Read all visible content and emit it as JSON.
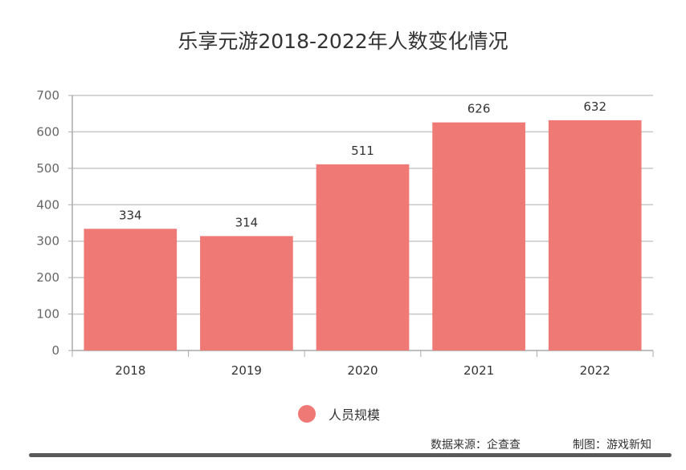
{
  "chart_data": {
    "type": "bar",
    "title": "乐享元游2018-2022年人数变化情况",
    "categories": [
      "2018",
      "2019",
      "2020",
      "2021",
      "2022"
    ],
    "series": [
      {
        "name": "人员规模",
        "values": [
          334,
          314,
          511,
          626,
          632
        ],
        "color": "#EF7975"
      }
    ],
    "ylim": [
      0,
      700
    ],
    "yticks": [
      0,
      100,
      200,
      300,
      400,
      500,
      600,
      700
    ],
    "grid": true,
    "legend": "bottom-center",
    "xlabel": "",
    "ylabel": ""
  },
  "footer": {
    "source": "数据来源：企查查",
    "credit": "制图：游戏新知"
  }
}
